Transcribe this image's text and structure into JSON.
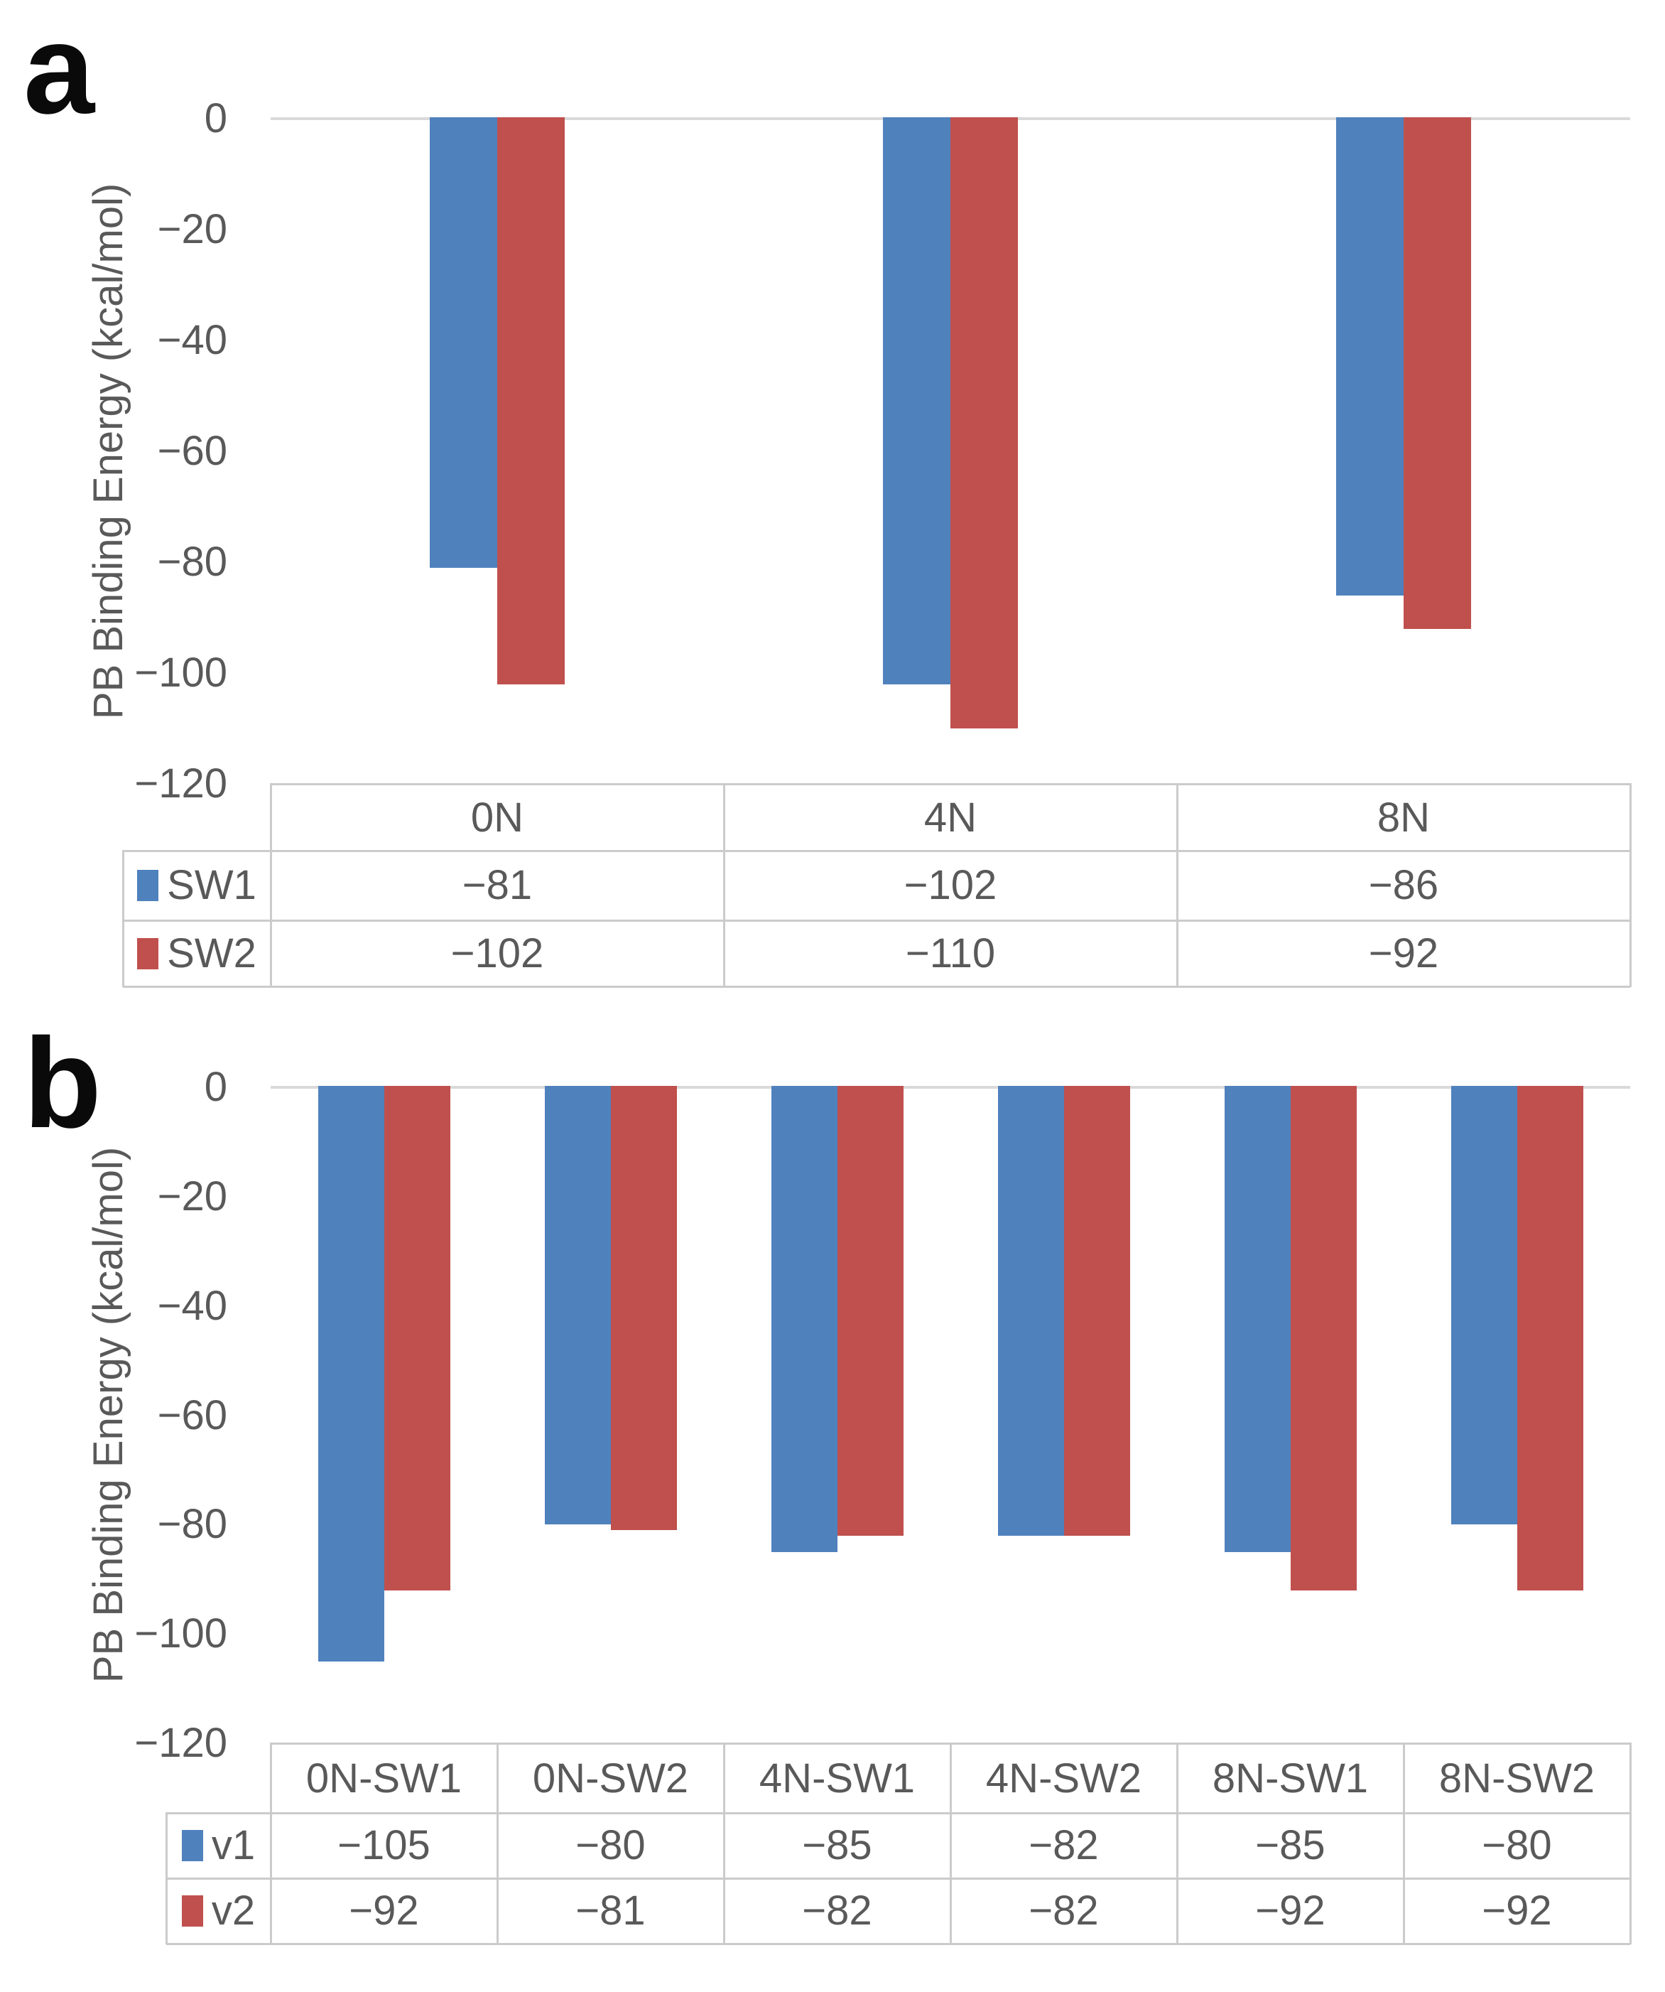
{
  "panels": [
    {
      "label": "a"
    },
    {
      "label": "b"
    }
  ],
  "colors": {
    "series1": "#4F81BD",
    "series2": "#C0504D",
    "axis_text": "#595959",
    "gridline": "#D9D9D9",
    "table_border": "#CBCBCB",
    "panel_label": "#0A0A0A",
    "background": "#FFFFFF"
  },
  "chart_data": [
    {
      "type": "bar",
      "title": "",
      "ylabel": "PB Binding Energy (kcal/mol)",
      "categories": [
        "0N",
        "4N",
        "8N"
      ],
      "series": [
        {
          "name": "SW1",
          "color": "#4F81BD",
          "values": [
            -81,
            -102,
            -86
          ],
          "value_labels": [
            "−81",
            "−102",
            "−86"
          ]
        },
        {
          "name": "SW2",
          "color": "#C0504D",
          "values": [
            -102,
            -110,
            -92
          ],
          "value_labels": [
            "−102",
            "−110",
            "−92"
          ]
        }
      ],
      "ylim": [
        0,
        -120
      ],
      "yticks": [
        0,
        -20,
        -40,
        -60,
        -80,
        -100,
        -120
      ],
      "ytick_labels": [
        "0",
        "−20",
        "−40",
        "−60",
        "−80",
        "−100",
        "−120"
      ],
      "grid": false,
      "legend_position": "data-table-left",
      "data_table": true
    },
    {
      "type": "bar",
      "title": "",
      "ylabel": "PB Binding Energy (kcal/mol)",
      "categories": [
        "0N-SW1",
        "0N-SW2",
        "4N-SW1",
        "4N-SW2",
        "8N-SW1",
        "8N-SW2"
      ],
      "series": [
        {
          "name": "v1",
          "color": "#4F81BD",
          "values": [
            -105,
            -80,
            -85,
            -82,
            -85,
            -80
          ],
          "value_labels": [
            "−105",
            "−80",
            "−85",
            "−82",
            "−85",
            "−80"
          ]
        },
        {
          "name": "v2",
          "color": "#C0504D",
          "values": [
            -92,
            -81,
            -82,
            -82,
            -92,
            -92
          ],
          "value_labels": [
            "−92",
            "−81",
            "−82",
            "−82",
            "−92",
            "−92"
          ]
        }
      ],
      "ylim": [
        0,
        -120
      ],
      "yticks": [
        0,
        -20,
        -40,
        -60,
        -80,
        -100,
        -120
      ],
      "ytick_labels": [
        "0",
        "−20",
        "−40",
        "−60",
        "−80",
        "−100",
        "−120"
      ],
      "grid": false,
      "legend_position": "data-table-left",
      "data_table": true
    }
  ]
}
